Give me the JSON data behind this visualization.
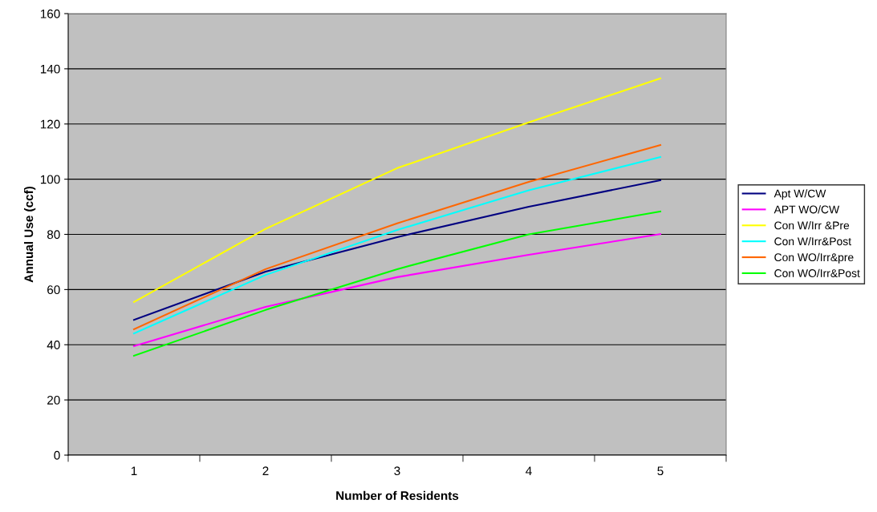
{
  "chart_data": {
    "type": "line",
    "xlabel": "Number of Residents",
    "ylabel": "Annual Use (ccf)",
    "categories": [
      "1",
      "2",
      "3",
      "4",
      "5"
    ],
    "series": [
      {
        "name": "Apt W/CW",
        "color": "#000080",
        "values": [
          49,
          66.5,
          79,
          90,
          99.6
        ]
      },
      {
        "name": "APT WO/CW",
        "color": "#ff00ff",
        "values": [
          39.5,
          53.7,
          64.5,
          72.6,
          80.1
        ]
      },
      {
        "name": "Con W/Irr &Pre",
        "color": "#ffff00",
        "values": [
          55.5,
          82,
          104,
          120.6,
          136.5
        ]
      },
      {
        "name": "Con W/Irr&Post",
        "color": "#00ffff",
        "values": [
          44.1,
          65.3,
          81.6,
          96,
          108
        ]
      },
      {
        "name": "Con WO/Irr&pre",
        "color": "#ff6600",
        "values": [
          45.6,
          67.4,
          84,
          99,
          112.4
        ]
      },
      {
        "name": "Con WO/Irr&Post",
        "color": "#00ff00",
        "values": [
          36,
          52.6,
          67.4,
          80,
          88.3
        ]
      }
    ],
    "ylim": [
      0,
      160
    ],
    "yticks": [
      0,
      20,
      40,
      60,
      80,
      100,
      120,
      140,
      160
    ],
    "grid": "y",
    "legend": "right",
    "marker": "none",
    "line_style": "solid"
  }
}
